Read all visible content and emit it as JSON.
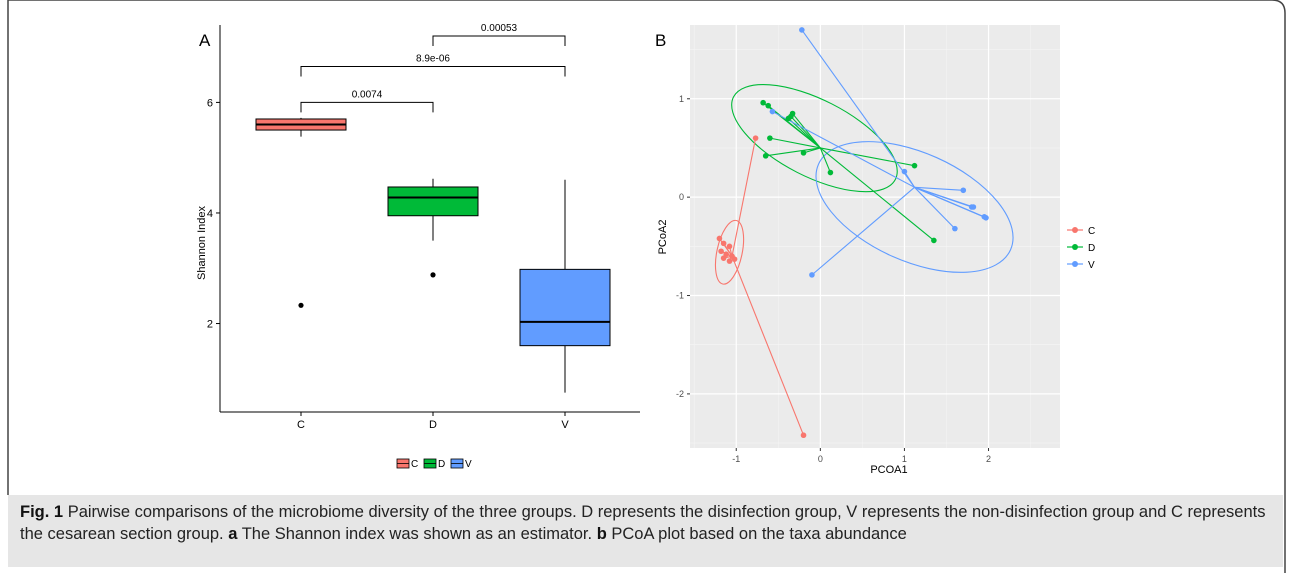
{
  "chart_data": [
    {
      "panel": "A",
      "type": "box",
      "ylabel": "Shannon Index",
      "xlabel": "",
      "ylim": [
        0.4,
        7.4
      ],
      "yticks": [
        2,
        4,
        6
      ],
      "categories": [
        "C",
        "D",
        "V"
      ],
      "colors": [
        "#F8766D",
        "#00BA38",
        "#619CFF"
      ],
      "boxes": [
        {
          "group": "C",
          "whisker_low": 5.38,
          "q1": 5.5,
          "median": 5.6,
          "q3": 5.7,
          "whisker_high": 5.72,
          "outliers": [
            2.33
          ]
        },
        {
          "group": "D",
          "whisker_low": 3.5,
          "q1": 3.95,
          "median": 4.28,
          "q3": 4.47,
          "whisker_high": 4.62,
          "outliers": [
            2.88
          ]
        },
        {
          "group": "V",
          "whisker_low": 0.75,
          "q1": 1.6,
          "median": 2.03,
          "q3": 2.98,
          "whisker_high": 4.6,
          "outliers": []
        }
      ],
      "comparisons": [
        {
          "from": "C",
          "to": "D",
          "y": 6.0,
          "label": "0.0074"
        },
        {
          "from": "C",
          "to": "V",
          "y": 6.65,
          "label": "8.9e-06"
        },
        {
          "from": "D",
          "to": "V",
          "y": 7.2,
          "label": "0.00053"
        }
      ],
      "legend": {
        "position": "bottom",
        "entries": [
          "C",
          "D",
          "V"
        ]
      }
    },
    {
      "panel": "B",
      "type": "scatter",
      "xlabel": "PCOA1",
      "ylabel": "PCoA2",
      "xlim": [
        -1.55,
        2.85
      ],
      "ylim": [
        -2.55,
        1.75
      ],
      "xticks": [
        -1,
        0,
        1,
        2
      ],
      "yticks": [
        -2,
        -1,
        0,
        1
      ],
      "legend": {
        "position": "right",
        "entries": [
          "C",
          "D",
          "V"
        ]
      },
      "series": [
        {
          "name": "C",
          "color": "#F8766D",
          "centroid": [
            -1.05,
            -0.6
          ],
          "points": [
            [
              -1.2,
              -0.42
            ],
            [
              -1.15,
              -0.47
            ],
            [
              -1.08,
              -0.5
            ],
            [
              -1.18,
              -0.55
            ],
            [
              -1.12,
              -0.58
            ],
            [
              -1.05,
              -0.6
            ],
            [
              -1.15,
              -0.62
            ],
            [
              -1.08,
              -0.65
            ],
            [
              -1.02,
              -0.63
            ],
            [
              -0.77,
              0.6
            ],
            [
              -0.2,
              -2.42
            ]
          ],
          "ellipse": {
            "cx": -1.08,
            "cy": -0.56,
            "rx": 0.15,
            "ry": 0.33,
            "rotate": 12
          }
        },
        {
          "name": "D",
          "color": "#00BA38",
          "centroid": [
            0.0,
            0.5
          ],
          "points": [
            [
              -0.68,
              0.96
            ],
            [
              -0.62,
              0.93
            ],
            [
              -0.38,
              0.8
            ],
            [
              -0.33,
              0.85
            ],
            [
              -0.35,
              0.82
            ],
            [
              -0.6,
              0.6
            ],
            [
              -0.65,
              0.42
            ],
            [
              -0.2,
              0.45
            ],
            [
              0.12,
              0.25
            ],
            [
              1.12,
              0.32
            ],
            [
              1.35,
              -0.44
            ]
          ],
          "ellipse": {
            "cx": -0.07,
            "cy": 0.6,
            "rx": 1.08,
            "ry": 0.39,
            "rotate": 27
          }
        },
        {
          "name": "V",
          "color": "#619CFF",
          "centroid": [
            1.12,
            0.1
          ],
          "points": [
            [
              -0.22,
              1.7
            ],
            [
              -0.57,
              0.87
            ],
            [
              1.0,
              0.26
            ],
            [
              1.7,
              0.07
            ],
            [
              1.8,
              -0.1
            ],
            [
              1.82,
              -0.1
            ],
            [
              1.95,
              -0.2
            ],
            [
              1.97,
              -0.21
            ],
            [
              1.6,
              -0.32
            ],
            [
              -0.1,
              -0.79
            ]
          ],
          "ellipse": {
            "cx": 1.12,
            "cy": -0.1,
            "rx": 1.25,
            "ry": 0.55,
            "rotate": 24
          }
        }
      ]
    }
  ],
  "caption": {
    "fig_label": "Fig. 1",
    "intro": "Pairwise comparisons of the microbiome diversity of the three groups. D represents the disinfection group, V represents the non-disinfection group and C represents the cesarean section group.",
    "a_label": "a",
    "a_text": "The Shannon index was shown as an estimator.",
    "b_label": "b",
    "b_text": "PCoA plot based on the taxa abundance"
  }
}
